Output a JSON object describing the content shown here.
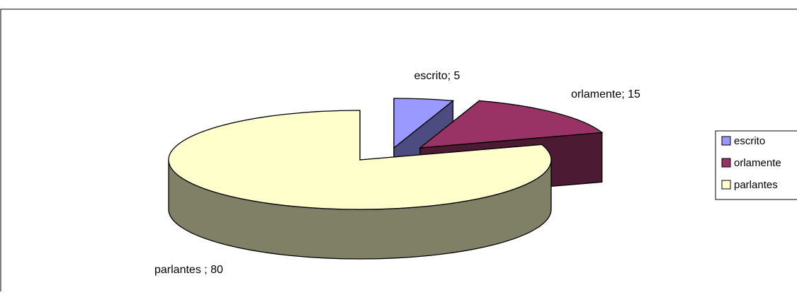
{
  "chart_data": {
    "type": "pie",
    "title": "",
    "categories": [
      "escrito",
      "orlamente",
      "parlantes"
    ],
    "values": [
      5,
      15,
      80
    ],
    "data_labels": [
      "escrito; 5",
      "orlamente; 15",
      "parlantes ; 80"
    ],
    "legend": {
      "placement": "right",
      "entries": [
        "escrito",
        "orlamente",
        "parlantes"
      ]
    },
    "style": "3d-exploded",
    "colors": {
      "top": [
        "#9999FF",
        "#993366",
        "#FFFFCC"
      ],
      "side": [
        "#4C4C80",
        "#4D1A33",
        "#808066"
      ]
    }
  }
}
